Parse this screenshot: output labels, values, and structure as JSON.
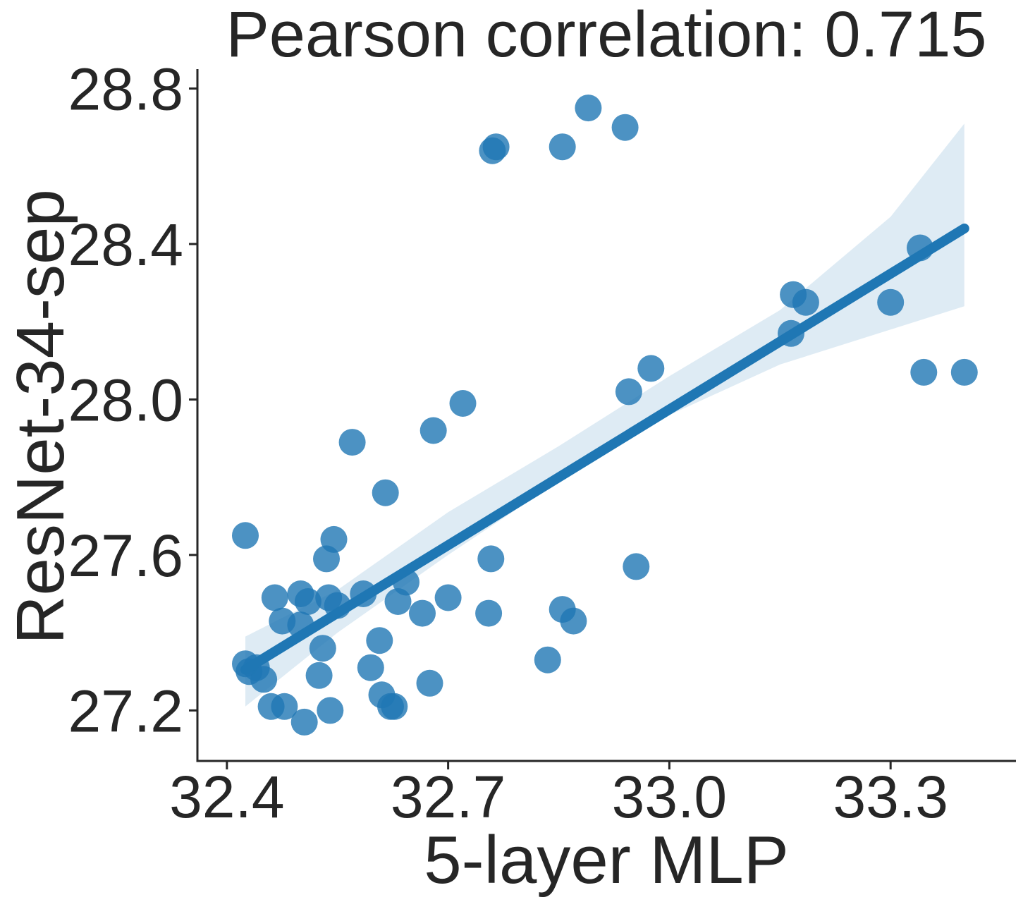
{
  "chart_data": {
    "type": "scatter",
    "title": "Pearson correlation: 0.715",
    "xlabel": "5-layer MLP",
    "ylabel": "ResNet-34-sep",
    "xlim": [
      32.36,
      33.47
    ],
    "ylim": [
      27.07,
      28.85
    ],
    "xticks": [
      "32.4",
      "32.7",
      "33.0",
      "33.3"
    ],
    "yticks": [
      "27.2",
      "27.6",
      "28.0",
      "28.4",
      "28.8"
    ],
    "grid": false,
    "legend": "none",
    "colors": {
      "points": "#1f77b4",
      "band": "#1f77b4",
      "axis": "#262626"
    },
    "points": {
      "x": [
        32.425,
        32.425,
        32.43,
        32.44,
        32.45,
        32.46,
        32.465,
        32.475,
        32.478,
        32.5,
        32.5,
        32.505,
        32.51,
        32.525,
        32.53,
        32.535,
        32.538,
        32.54,
        32.545,
        32.55,
        32.57,
        32.585,
        32.595,
        32.607,
        32.61,
        32.615,
        32.622,
        32.627,
        32.632,
        32.643,
        32.665,
        32.675,
        32.68,
        32.7,
        32.72,
        32.755,
        32.758,
        32.76,
        32.765,
        32.835,
        32.855,
        32.855,
        32.87,
        32.89,
        32.94,
        32.945,
        32.955,
        32.975,
        33.165,
        33.168,
        33.185,
        33.3,
        33.34,
        33.345,
        33.4
      ],
      "y": [
        27.65,
        27.32,
        27.3,
        27.31,
        27.28,
        27.21,
        27.49,
        27.43,
        27.21,
        27.5,
        27.42,
        27.17,
        27.48,
        27.29,
        27.36,
        27.59,
        27.49,
        27.2,
        27.64,
        27.47,
        27.89,
        27.5,
        27.31,
        27.38,
        27.24,
        27.76,
        27.21,
        27.21,
        27.48,
        27.53,
        27.45,
        27.27,
        27.92,
        27.49,
        27.99,
        27.45,
        27.59,
        28.64,
        28.65,
        27.33,
        27.46,
        28.65,
        27.43,
        28.75,
        28.7,
        28.02,
        27.57,
        28.08,
        28.17,
        28.27,
        28.25,
        28.25,
        28.39,
        28.07,
        28.07
      ]
    },
    "regression": {
      "x": [
        32.425,
        33.4
      ],
      "y": [
        27.305,
        28.44
      ]
    },
    "confidence_band": {
      "x": [
        32.425,
        32.55,
        32.7,
        32.85,
        33.0,
        33.15,
        33.3,
        33.4
      ],
      "lower": [
        27.21,
        27.4,
        27.6,
        27.79,
        27.96,
        28.09,
        28.18,
        28.24
      ],
      "upper": [
        27.39,
        27.51,
        27.71,
        27.88,
        28.06,
        28.23,
        28.47,
        28.71
      ]
    }
  }
}
